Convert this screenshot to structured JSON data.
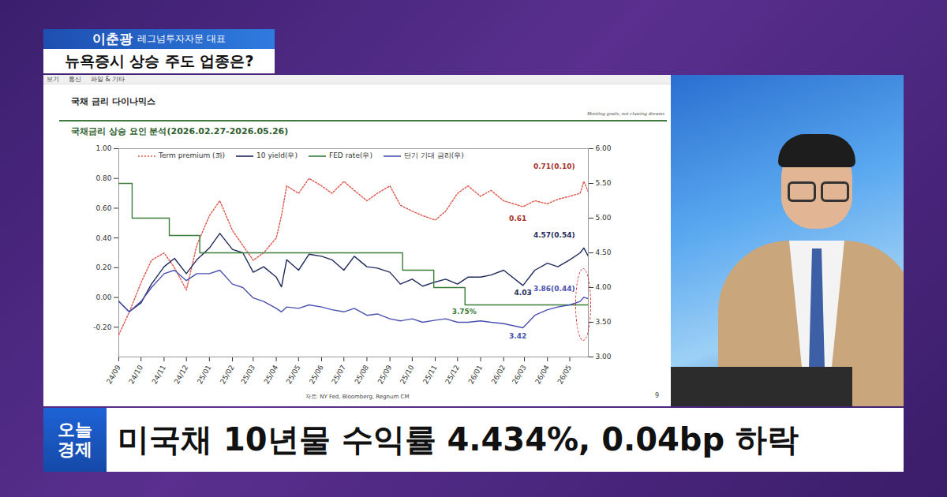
{
  "broadcast": {
    "speaker_name": "이춘광",
    "speaker_title": "레그넘투자자문 대표",
    "headline": "뉴욕증시 상승 주도 업종은?",
    "toolbar": [
      "보기",
      "통신",
      "파일 & 기타"
    ],
    "logo": [
      "오늘",
      "경제"
    ],
    "caption": "미국채 10년물 수익률 4.434%, 0.04bp 하락"
  },
  "chart_data": {
    "type": "line",
    "title": "국채 금리 다이나믹스",
    "motto": "Hunting goals, not chasing dreams",
    "subtitle": "국채금리 상승 요인 분석(2026.02.27-2026.05.26)",
    "source": "자료: NY Fed, Bloomberg, Regnum CM",
    "page": "9",
    "grid": false,
    "legend": "top",
    "x": [
      "2024-09-01",
      "2024-09-15",
      "2024-10-01",
      "2024-10-15",
      "2024-11-01",
      "2024-11-15",
      "2024-12-01",
      "2024-12-15",
      "2025-01-01",
      "2025-01-15",
      "2025-02-01",
      "2025-02-15",
      "2025-03-01",
      "2025-03-15",
      "2025-04-01",
      "2025-04-08",
      "2025-04-15",
      "2025-05-01",
      "2025-05-15",
      "2025-06-01",
      "2025-06-15",
      "2025-07-01",
      "2025-07-15",
      "2025-08-01",
      "2025-08-15",
      "2025-09-01",
      "2025-09-15",
      "2025-10-01",
      "2025-10-15",
      "2025-11-01",
      "2025-11-15",
      "2025-12-01",
      "2025-12-15",
      "2026-01-01",
      "2026-01-15",
      "2026-02-01",
      "2026-02-27",
      "2026-03-15",
      "2026-04-01",
      "2026-04-15",
      "2026-05-01",
      "2026-05-15",
      "2026-05-20",
      "2026-05-26"
    ],
    "xlim": [
      "2024-09-01",
      "2026-05-26"
    ],
    "xticks": [
      {
        "value": "2024-09-01",
        "label": "24/09"
      },
      {
        "value": "2024-10-01",
        "label": "24/10"
      },
      {
        "value": "2024-11-01",
        "label": "24/11"
      },
      {
        "value": "2024-12-01",
        "label": "24/12"
      },
      {
        "value": "2025-01-01",
        "label": "25/01"
      },
      {
        "value": "2025-02-01",
        "label": "25/02"
      },
      {
        "value": "2025-03-01",
        "label": "25/03"
      },
      {
        "value": "2025-04-01",
        "label": "25/04"
      },
      {
        "value": "2025-05-01",
        "label": "25/05"
      },
      {
        "value": "2025-06-01",
        "label": "25/06"
      },
      {
        "value": "2025-07-01",
        "label": "25/07"
      },
      {
        "value": "2025-08-01",
        "label": "25/08"
      },
      {
        "value": "2025-09-01",
        "label": "25/09"
      },
      {
        "value": "2025-10-01",
        "label": "25/10"
      },
      {
        "value": "2025-11-01",
        "label": "25/11"
      },
      {
        "value": "2025-12-01",
        "label": "25/12"
      },
      {
        "value": "2026-01-01",
        "label": "26/01"
      },
      {
        "value": "2026-02-01",
        "label": "26/02"
      },
      {
        "value": "2026-03-01",
        "label": "26/03"
      },
      {
        "value": "2026-04-01",
        "label": "26/04"
      },
      {
        "value": "2026-05-01",
        "label": "26/05"
      }
    ],
    "ylim": [
      -0.4,
      1.0
    ],
    "yticks": [
      {
        "value": 1.0,
        "label": "1.00"
      },
      {
        "value": 0.8,
        "label": "0.80"
      },
      {
        "value": 0.6,
        "label": "0.60"
      },
      {
        "value": 0.4,
        "label": "0.40"
      },
      {
        "value": 0.2,
        "label": "0.20"
      },
      {
        "value": 0,
        "label": "0.00"
      },
      {
        "value": -0.2,
        "label": "-0.20"
      }
    ],
    "y2lim": [
      3.0,
      6.0
    ],
    "y2ticks": [
      {
        "value": 6.0,
        "label": "6.00"
      },
      {
        "value": 5.5,
        "label": "5.50"
      },
      {
        "value": 5.0,
        "label": "5.00"
      },
      {
        "value": 4.5,
        "label": "4.50"
      },
      {
        "value": 4.0,
        "label": "4.00"
      },
      {
        "value": 3.5,
        "label": "3.50"
      },
      {
        "value": 3.0,
        "label": "3.00"
      }
    ],
    "series": [
      {
        "name": "Term premium (좌)",
        "color": "#e0564c",
        "line_style": "dotted",
        "axis": "y",
        "values": [
          -0.25,
          -0.1,
          0.1,
          0.25,
          0.3,
          0.2,
          0.05,
          0.35,
          0.55,
          0.65,
          0.45,
          0.35,
          0.25,
          0.3,
          0.4,
          0.55,
          0.75,
          0.7,
          0.8,
          0.75,
          0.7,
          0.78,
          0.72,
          0.65,
          0.7,
          0.75,
          0.62,
          0.58,
          0.55,
          0.52,
          0.58,
          0.7,
          0.75,
          0.68,
          0.72,
          0.65,
          0.61,
          0.65,
          0.63,
          0.66,
          0.68,
          0.7,
          0.78,
          0.71
        ]
      },
      {
        "name": "10 yield(우)",
        "color": "#1f2a5c",
        "line_style": "solid",
        "axis": "y2",
        "values": [
          3.8,
          3.65,
          3.78,
          4.05,
          4.3,
          4.42,
          4.2,
          4.4,
          4.57,
          4.78,
          4.55,
          4.5,
          4.22,
          4.3,
          4.15,
          4.01,
          4.4,
          4.25,
          4.48,
          4.45,
          4.4,
          4.25,
          4.45,
          4.3,
          4.28,
          4.22,
          4.05,
          4.12,
          4.02,
          4.08,
          4.12,
          4.05,
          4.15,
          4.15,
          4.18,
          4.25,
          4.03,
          4.25,
          4.35,
          4.3,
          4.4,
          4.5,
          4.57,
          4.45
        ]
      },
      {
        "name": "FED rate(우)",
        "color": "#3a7d3a",
        "line_style": "step",
        "axis": "y2",
        "x": [
          "2024-09-01",
          "2024-09-19",
          "2024-11-08",
          "2024-12-19",
          "2025-09-18",
          "2025-10-30",
          "2025-12-11",
          "2026-05-26"
        ],
        "values": [
          5.5,
          5.0,
          4.75,
          4.5,
          4.25,
          4.0,
          3.75,
          3.75
        ]
      },
      {
        "name": "단기 기대 금리(우)",
        "color": "#4a50b0",
        "line_style": "solid",
        "axis": "y2",
        "values": [
          3.8,
          3.65,
          3.8,
          4.0,
          4.2,
          4.25,
          4.1,
          4.2,
          4.2,
          4.25,
          4.05,
          4.0,
          3.85,
          3.8,
          3.7,
          3.65,
          3.72,
          3.7,
          3.75,
          3.72,
          3.68,
          3.65,
          3.7,
          3.6,
          3.62,
          3.55,
          3.52,
          3.55,
          3.5,
          3.53,
          3.55,
          3.5,
          3.5,
          3.52,
          3.5,
          3.48,
          3.42,
          3.6,
          3.68,
          3.72,
          3.75,
          3.8,
          3.86,
          3.84
        ]
      }
    ],
    "annotations": [
      {
        "text": "0.71(0.10)",
        "x": "2026-04-10",
        "y": 0.88,
        "axis": "y",
        "color": "#a8322c"
      },
      {
        "text": "0.61",
        "x": "2026-02-20",
        "y": 0.53,
        "axis": "y",
        "color": "#a8322c"
      },
      {
        "text": "4.57(0.54)",
        "x": "2026-04-10",
        "y": 4.75,
        "axis": "y2",
        "color": "#1f2a5c"
      },
      {
        "text": "4.03",
        "x": "2026-02-27",
        "y": 3.93,
        "axis": "y2",
        "color": "#1f2a5c"
      },
      {
        "text": "3.86(0.44)",
        "x": "2026-04-10",
        "y": 3.98,
        "axis": "y2",
        "color": "#4a50b0"
      },
      {
        "text": "3.75%",
        "x": "2025-12-10",
        "y": 3.65,
        "axis": "y2",
        "color": "#3a7d3a"
      },
      {
        "text": "3.42",
        "x": "2026-02-20",
        "y": 3.3,
        "axis": "y2",
        "color": "#4a50b0"
      }
    ]
  }
}
